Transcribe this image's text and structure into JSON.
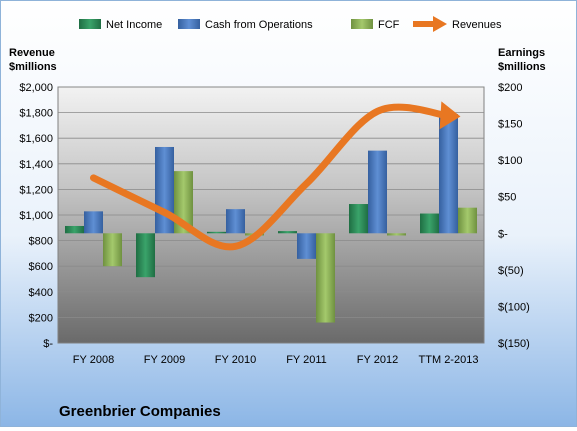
{
  "chart_data": {
    "type": "bar",
    "title": "Greenbrier Companies",
    "categories": [
      "FY 2008",
      "FY 2009",
      "FY 2010",
      "FY 2011",
      "FY 2012",
      "TTM 2-2013"
    ],
    "left_axis": {
      "label_line1": "Revenue",
      "label_line2": "$millions",
      "ylim": [
        0,
        2000
      ],
      "ticks": [
        0,
        200,
        400,
        600,
        800,
        1000,
        1200,
        1400,
        1600,
        1800,
        2000
      ],
      "tick_labels": [
        "$-",
        "$200",
        "$400",
        "$600",
        "$800",
        "$1,000",
        "$1,200",
        "$1,400",
        "$1,600",
        "$1,800",
        "$2,000"
      ]
    },
    "right_axis": {
      "label_line1": "Earnings",
      "label_line2": "$millions",
      "ylim": [
        -150,
        200
      ],
      "ticks": [
        -150,
        -100,
        -50,
        0,
        50,
        100,
        150,
        200
      ],
      "tick_labels": [
        "$(150)",
        "$(100)",
        "$(50)",
        "$-",
        "$50",
        "$100",
        "$150",
        "$200"
      ]
    },
    "series": [
      {
        "name": "Net Income",
        "type": "bar",
        "axis": "right",
        "color": "#2e8b57",
        "values": [
          10,
          -60,
          2,
          3,
          40,
          27
        ]
      },
      {
        "name": "Cash from Operations",
        "type": "bar",
        "axis": "right",
        "color": "#4f7cc2",
        "values": [
          30,
          118,
          33,
          -35,
          113,
          163
        ]
      },
      {
        "name": "FCF",
        "type": "bar",
        "axis": "right",
        "color": "#8fb35a",
        "values": [
          -45,
          85,
          -3,
          -122,
          -3,
          35
        ]
      },
      {
        "name": "Revenues",
        "type": "line",
        "axis": "left",
        "color": "#e87722",
        "values": [
          1290,
          1020,
          755,
          1245,
          1810,
          1775
        ]
      }
    ],
    "legend_position": "top",
    "grid": true
  }
}
